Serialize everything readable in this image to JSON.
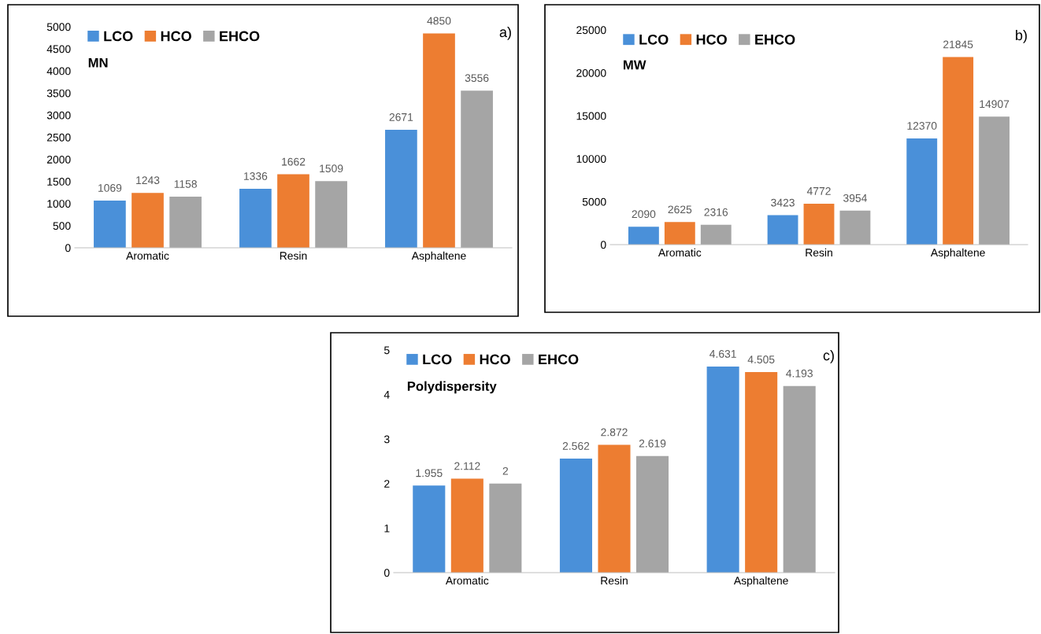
{
  "chart_data": [
    {
      "type": "bar",
      "title": "MN",
      "categories": [
        "Aromatic",
        "Resin",
        "Asphaltene"
      ],
      "ylim": [
        0,
        5000
      ],
      "yticks": [
        0,
        500,
        1000,
        1500,
        2000,
        2500,
        3000,
        3500,
        4000,
        4500,
        5000
      ],
      "legend": "top left",
      "grid": false,
      "data_labels": true,
      "annotations": [
        "a)"
      ],
      "series": [
        {
          "name": "LCO",
          "color": "#4a90d9",
          "values": [
            1069,
            1336,
            2671
          ]
        },
        {
          "name": "HCO",
          "color": "#ed7d31",
          "values": [
            1243,
            1662,
            4850
          ]
        },
        {
          "name": "EHCO",
          "color": "#a5a5a5",
          "values": [
            1158,
            1509,
            3556
          ]
        }
      ]
    },
    {
      "type": "bar",
      "title": "MW",
      "categories": [
        "Aromatic",
        "Resin",
        "Asphaltene"
      ],
      "ylim": [
        0,
        25000
      ],
      "yticks": [
        0,
        5000,
        10000,
        15000,
        20000,
        25000
      ],
      "legend": "top left",
      "grid": false,
      "data_labels": true,
      "annotations": [
        "b)"
      ],
      "series": [
        {
          "name": "LCO",
          "color": "#4a90d9",
          "values": [
            2090,
            3423,
            12370
          ]
        },
        {
          "name": "HCO",
          "color": "#ed7d31",
          "values": [
            2625,
            4772,
            21845
          ]
        },
        {
          "name": "EHCO",
          "color": "#a5a5a5",
          "values": [
            2316,
            3954,
            14907
          ]
        }
      ]
    },
    {
      "type": "bar",
      "title": "Polydispersity",
      "categories": [
        "Aromatic",
        "Resin",
        "Asphaltene"
      ],
      "ylim": [
        0,
        5
      ],
      "yticks": [
        0,
        1,
        2,
        3,
        4,
        5
      ],
      "legend": "top left",
      "grid": false,
      "data_labels": true,
      "annotations": [
        "c)"
      ],
      "series": [
        {
          "name": "LCO",
          "color": "#4a90d9",
          "values": [
            1.955,
            2.562,
            4.631
          ]
        },
        {
          "name": "HCO",
          "color": "#ed7d31",
          "values": [
            2.112,
            2.872,
            4.505
          ]
        },
        {
          "name": "EHCO",
          "color": "#a5a5a5",
          "values": [
            2,
            2.619,
            4.193
          ]
        }
      ]
    }
  ]
}
